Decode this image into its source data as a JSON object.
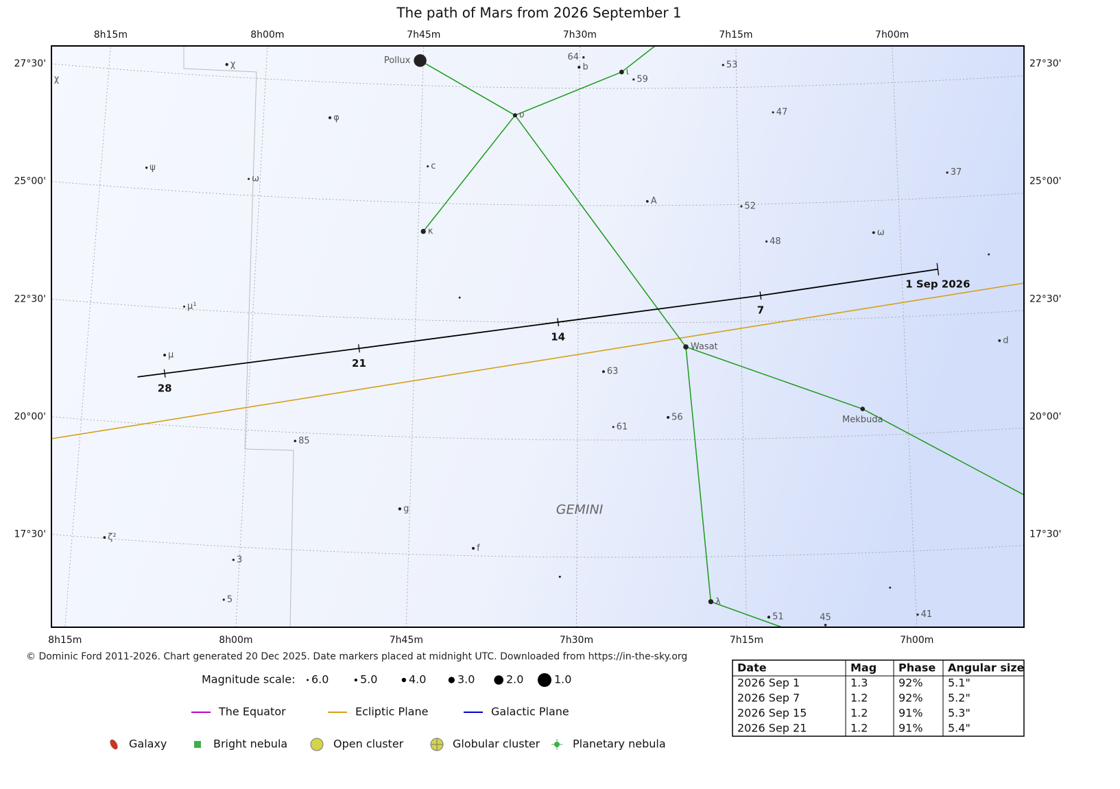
{
  "title": "The path of Mars from 2026 September 1",
  "ra_ticks": [
    {
      "value": 8.25,
      "label": "8h15m"
    },
    {
      "value": 8,
      "label": "8h00m"
    },
    {
      "value": 7.75,
      "label": "7h45m"
    },
    {
      "value": 7.5,
      "label": "7h30m"
    },
    {
      "value": 7.25,
      "label": "7h15m"
    },
    {
      "value": 7,
      "label": "7h00m"
    }
  ],
  "dec_ticks": [
    {
      "value": 27.5,
      "label": "27°30'"
    },
    {
      "value": 25,
      "label": "25°00'"
    },
    {
      "value": 22.5,
      "label": "22°30'"
    },
    {
      "value": 20,
      "label": "20°00'"
    },
    {
      "value": 17.5,
      "label": "17°30'"
    }
  ],
  "stars": [
    {
      "label": "Pollux",
      "ra": 7.755,
      "dec": 28.03,
      "mag": 1.2
    },
    {
      "label": "χ",
      "ra": 8.341,
      "dec": 27.17,
      "mag": 5.1
    },
    {
      "label": "χ",
      "ra": 8.063,
      "dec": 27.76,
      "mag": 5.0
    },
    {
      "label": "64",
      "ra": 7.494,
      "dec": 28.16,
      "mag": 5.6
    },
    {
      "label": "b",
      "ra": 7.501,
      "dec": 27.95,
      "mag": 5.0
    },
    {
      "label": "ι",
      "ra": 7.433,
      "dec": 27.85,
      "mag": 3.8
    },
    {
      "label": "59",
      "ra": 7.414,
      "dec": 27.69,
      "mag": 5.8
    },
    {
      "label": "53",
      "ra": 7.271,
      "dec": 27.98,
      "mag": 5.7
    },
    {
      "label": "υ",
      "ra": 7.602,
      "dec": 26.91,
      "mag": 4.1
    },
    {
      "label": "φ",
      "ra": 7.895,
      "dec": 26.74,
      "mag": 5.0
    },
    {
      "label": "47",
      "ra": 7.193,
      "dec": 26.95,
      "mag": 5.8
    },
    {
      "label": "ψ",
      "ra": 8.179,
      "dec": 25.45,
      "mag": 5.6
    },
    {
      "label": "c",
      "ra": 7.738,
      "dec": 25.78,
      "mag": 5.8
    },
    {
      "label": "ω",
      "ra": 8.018,
      "dec": 25.35,
      "mag": 5.9
    },
    {
      "label": "37",
      "ra": 6.922,
      "dec": 25.53,
      "mag": 5.7
    },
    {
      "label": "A",
      "ra": 7.393,
      "dec": 25.09,
      "mag": 5.3
    },
    {
      "label": "52",
      "ra": 7.246,
      "dec": 24.96,
      "mag": 5.8
    },
    {
      "label": "κ",
      "ra": 7.742,
      "dec": 24.39,
      "mag": 3.6
    },
    {
      "label": "ω",
      "ra": 7.041,
      "dec": 24.32,
      "mag": 5.2
    },
    {
      "label": "48",
      "ra": 7.208,
      "dec": 24.2,
      "mag": 5.8
    },
    {
      "label": null,
      "ra": 6.864,
      "dec": 23.74,
      "mag": 6.0
    },
    {
      "label": null,
      "ra": 7.683,
      "dec": 23.0,
      "mag": 6.0
    },
    {
      "label": "μ¹",
      "ra": 8.106,
      "dec": 22.55,
      "mag": 5.9
    },
    {
      "label": "d",
      "ra": 6.855,
      "dec": 21.89,
      "mag": 5.3
    },
    {
      "label": "Wasat",
      "ra": 7.335,
      "dec": 21.98,
      "mag": 3.5
    },
    {
      "label": "μ",
      "ra": 8.131,
      "dec": 21.49,
      "mag": 5.2
    },
    {
      "label": "63",
      "ra": 7.461,
      "dec": 21.46,
      "mag": 5.2
    },
    {
      "label": "Mekbuda",
      "ra": 7.068,
      "dec": 20.57,
      "mag": 3.9
    },
    {
      "label": "56",
      "ra": 7.363,
      "dec": 20.48,
      "mag": 5.1
    },
    {
      "label": "61",
      "ra": 7.446,
      "dec": 20.28,
      "mag": 5.9
    },
    {
      "label": "85",
      "ra": 7.926,
      "dec": 19.82,
      "mag": 5.4
    },
    {
      "label": "g",
      "ra": 7.765,
      "dec": 18.46,
      "mag": 4.9
    },
    {
      "label": "ζ²",
      "ra": 8.202,
      "dec": 17.52,
      "mag": 5.3
    },
    {
      "label": "f",
      "ra": 7.654,
      "dec": 17.66,
      "mag": 5.1
    },
    {
      "label": "3",
      "ra": 8.009,
      "dec": 17.22,
      "mag": 5.7
    },
    {
      "label": null,
      "ra": 7.525,
      "dec": 17.08,
      "mag": 5.8
    },
    {
      "label": "λ",
      "ra": 7.302,
      "dec": 16.54,
      "mag": 3.6
    },
    {
      "label": "5",
      "ra": 8.02,
      "dec": 16.36,
      "mag": 5.8
    },
    {
      "label": null,
      "ra": 7.037,
      "dec": 16.74,
      "mag": 6.0
    },
    {
      "label": "41",
      "ra": 6.998,
      "dec": 16.14,
      "mag": 5.7
    },
    {
      "label": "51",
      "ra": 7.217,
      "dec": 16.19,
      "mag": 5.0
    },
    {
      "label": "45",
      "ra": 7.134,
      "dec": 15.99,
      "mag": 5.4
    }
  ],
  "constellation_label": "GEMINI",
  "mars_path": [
    {
      "label": "1 Sep 2026",
      "ra": 6.944,
      "dec": 23.48
    },
    {
      "label": "7",
      "ra": 7.219,
      "dec": 23.05
    },
    {
      "label": "14",
      "ra": 7.531,
      "dec": 22.51
    },
    {
      "label": "21",
      "ra": 7.835,
      "dec": 21.85
    },
    {
      "label": "28",
      "ra": 8.129,
      "dec": 21.1
    }
  ],
  "credit": "© Dominic Ford 2011-2026. Chart generated 20 Dec 2025. Date markers placed at midnight UTC. Downloaded from https://in-the-sky.org",
  "magnitude_scale": {
    "title": "Magnitude scale:",
    "items": [
      {
        "value": 6,
        "label": "6.0"
      },
      {
        "value": 5,
        "label": "5.0"
      },
      {
        "value": 4,
        "label": "4.0"
      },
      {
        "value": 3,
        "label": "3.0"
      },
      {
        "value": 2,
        "label": "2.0"
      },
      {
        "value": 1,
        "label": "1.0"
      }
    ]
  },
  "line_legend": [
    {
      "name": "The Equator",
      "color": "#c000c0"
    },
    {
      "name": "Ecliptic Plane",
      "color": "#d4a017"
    },
    {
      "name": "Galactic Plane",
      "color": "#0000c8"
    }
  ],
  "symbol_legend": [
    "Galaxy",
    "Bright nebula",
    "Open cluster",
    "Globular cluster",
    "Planetary nebula"
  ],
  "table": {
    "header": [
      "Date",
      "Mag",
      "Phase",
      "Angular size"
    ],
    "rows": [
      [
        "2026 Sep 1",
        "1.3",
        "92%",
        "5.1\""
      ],
      [
        "2026 Sep 7",
        "1.2",
        "92%",
        "5.2\""
      ],
      [
        "2026 Sep 15",
        "1.2",
        "91%",
        "5.3\""
      ],
      [
        "2026 Sep 21",
        "1.2",
        "91%",
        "5.4\""
      ]
    ]
  }
}
